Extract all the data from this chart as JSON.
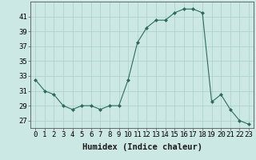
{
  "x": [
    0,
    1,
    2,
    3,
    4,
    5,
    6,
    7,
    8,
    9,
    10,
    11,
    12,
    13,
    14,
    15,
    16,
    17,
    18,
    19,
    20,
    21,
    22,
    23
  ],
  "y": [
    32.5,
    31.0,
    30.5,
    29.0,
    28.5,
    29.0,
    29.0,
    28.5,
    29.0,
    29.0,
    32.5,
    37.5,
    39.5,
    40.5,
    40.5,
    41.5,
    42.0,
    42.0,
    41.5,
    29.5,
    30.5,
    28.5,
    27.0,
    26.5
  ],
  "xlabel": "Humidex (Indice chaleur)",
  "ylim": [
    26,
    43
  ],
  "xlim": [
    -0.5,
    23.5
  ],
  "yticks": [
    27,
    29,
    31,
    33,
    35,
    37,
    39,
    41
  ],
  "xtick_labels": [
    "0",
    "1",
    "2",
    "3",
    "4",
    "5",
    "6",
    "7",
    "8",
    "9",
    "10",
    "11",
    "12",
    "13",
    "14",
    "15",
    "16",
    "17",
    "18",
    "19",
    "20",
    "21",
    "22",
    "23"
  ],
  "line_color": "#2e6b5e",
  "marker_color": "#2e6b5e",
  "bg_color": "#cce8e4",
  "grid_color": "#aacfca",
  "xlabel_fontsize": 7.5,
  "tick_fontsize": 6.5
}
